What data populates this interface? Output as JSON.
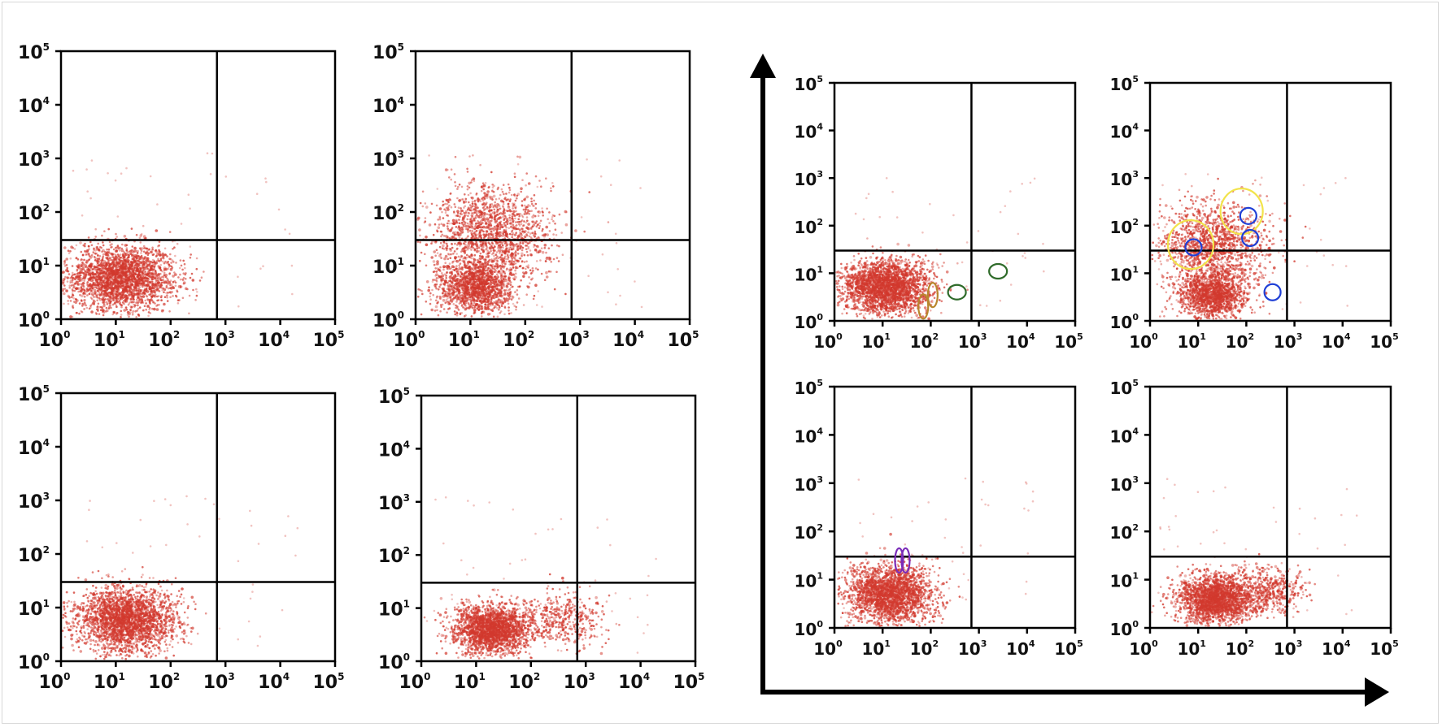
{
  "figure": {
    "colors": {
      "dots": "#d2392e",
      "axes": "#000000",
      "gate_yellow": "#f2e34a",
      "gate_blue": "#1f3fd6",
      "gate_green": "#2f6b2a",
      "gate_orange": "#b8862d",
      "gate_purple": "#7b2bb8"
    },
    "tick_base": "10",
    "tick_exponents": [
      "0",
      "1",
      "2",
      "3",
      "4",
      "5"
    ]
  },
  "chart_data": [
    {
      "id": "p1",
      "type": "scatter",
      "scale": "log",
      "xlim": [
        1,
        100000
      ],
      "ylim": [
        1,
        100000
      ],
      "quadrant_x": 700,
      "quadrant_y": 30,
      "clusters": [
        {
          "cx": 12,
          "cy": 6,
          "sx": 0.5,
          "sy": 0.3,
          "n": 2600
        }
      ]
    },
    {
      "id": "p2",
      "type": "scatter",
      "scale": "log",
      "xlim": [
        1,
        100000
      ],
      "ylim": [
        1,
        100000
      ],
      "quadrant_x": 700,
      "quadrant_y": 30,
      "clusters": [
        {
          "cx": 12,
          "cy": 4,
          "sx": 0.35,
          "sy": 0.25,
          "n": 1500
        },
        {
          "cx": 25,
          "cy": 40,
          "sx": 0.55,
          "sy": 0.45,
          "n": 1600
        }
      ]
    },
    {
      "id": "p3",
      "type": "scatter",
      "scale": "log",
      "xlim": [
        1,
        100000
      ],
      "ylim": [
        1,
        100000
      ],
      "quadrant_x": 700,
      "quadrant_y": 30,
      "clusters": [
        {
          "cx": 15,
          "cy": 6,
          "sx": 0.45,
          "sy": 0.3,
          "n": 2600
        }
      ]
    },
    {
      "id": "p4",
      "type": "scatter",
      "scale": "log",
      "xlim": [
        1,
        100000
      ],
      "ylim": [
        1,
        100000
      ],
      "quadrant_x": 700,
      "quadrant_y": 30,
      "clusters": [
        {
          "cx": 20,
          "cy": 4,
          "sx": 0.35,
          "sy": 0.22,
          "n": 2200
        },
        {
          "cx": 350,
          "cy": 6,
          "sx": 0.4,
          "sy": 0.25,
          "n": 450
        }
      ]
    },
    {
      "id": "p5",
      "type": "scatter",
      "scale": "log",
      "xlim": [
        1,
        100000
      ],
      "ylim": [
        1,
        100000
      ],
      "quadrant_x": 700,
      "quadrant_y": 30,
      "clusters": [
        {
          "cx": 12,
          "cy": 5,
          "sx": 0.45,
          "sy": 0.28,
          "n": 2600
        }
      ],
      "gates": [
        {
          "color": "gate_green",
          "x": 2500,
          "y": 11,
          "rx": 11,
          "ry": 9
        },
        {
          "color": "gate_green",
          "x": 350,
          "y": 4,
          "rx": 11,
          "ry": 9
        },
        {
          "color": "gate_orange",
          "x": 110,
          "y": 3.5,
          "rx": 6,
          "ry": 15
        },
        {
          "color": "gate_orange",
          "x": 70,
          "y": 2,
          "rx": 6,
          "ry": 15
        }
      ]
    },
    {
      "id": "p6",
      "type": "scatter",
      "scale": "log",
      "xlim": [
        1,
        100000
      ],
      "ylim": [
        1,
        100000
      ],
      "quadrant_x": 700,
      "quadrant_y": 30,
      "clusters": [
        {
          "cx": 20,
          "cy": 3.5,
          "sx": 0.35,
          "sy": 0.25,
          "n": 1500
        },
        {
          "cx": 20,
          "cy": 40,
          "sx": 0.55,
          "sy": 0.45,
          "n": 1400
        }
      ],
      "gates": [
        {
          "color": "gate_yellow",
          "x": 7,
          "y": 40,
          "rx": 28,
          "ry": 30
        },
        {
          "color": "gate_yellow",
          "x": 80,
          "y": 200,
          "rx": 26,
          "ry": 28
        },
        {
          "color": "gate_blue",
          "x": 8,
          "y": 35,
          "rx": 10,
          "ry": 10
        },
        {
          "color": "gate_blue",
          "x": 110,
          "y": 160,
          "rx": 10,
          "ry": 10
        },
        {
          "color": "gate_blue",
          "x": 120,
          "y": 55,
          "rx": 10,
          "ry": 10
        },
        {
          "color": "gate_blue",
          "x": 350,
          "y": 4,
          "rx": 10,
          "ry": 10
        }
      ]
    },
    {
      "id": "p7",
      "type": "scatter",
      "scale": "log",
      "xlim": [
        1,
        100000
      ],
      "ylim": [
        1,
        100000
      ],
      "quadrant_x": 700,
      "quadrant_y": 30,
      "clusters": [
        {
          "cx": 15,
          "cy": 5,
          "sx": 0.45,
          "sy": 0.3,
          "n": 2400
        }
      ],
      "gates": [
        {
          "color": "gate_purple",
          "x": 22,
          "y": 25,
          "rx": 5,
          "ry": 15
        },
        {
          "color": "gate_purple",
          "x": 30,
          "y": 25,
          "rx": 5,
          "ry": 15
        }
      ]
    },
    {
      "id": "p8",
      "type": "scatter",
      "scale": "log",
      "xlim": [
        1,
        100000
      ],
      "ylim": [
        1,
        100000
      ],
      "quadrant_x": 700,
      "quadrant_y": 30,
      "clusters": [
        {
          "cx": 25,
          "cy": 4,
          "sx": 0.4,
          "sy": 0.25,
          "n": 2200
        },
        {
          "cx": 300,
          "cy": 6,
          "sx": 0.35,
          "sy": 0.25,
          "n": 450
        }
      ]
    }
  ]
}
